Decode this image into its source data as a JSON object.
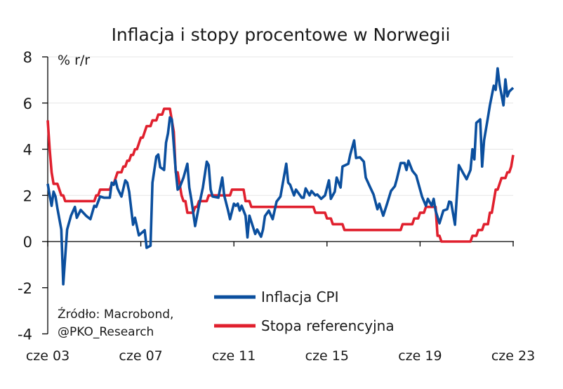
{
  "chart_data": {
    "type": "line",
    "title": "Inflacja i stopy procentowe w Norwegii",
    "ylabel": "% r/r",
    "ylim": [
      -4,
      8
    ],
    "yticks": [
      "8",
      "6",
      "4",
      "2",
      "0",
      "-2",
      "-4"
    ],
    "xlim": [
      "2003-06",
      "2023-06"
    ],
    "xticks": [
      {
        "date": "2003-06",
        "label": "cze 03"
      },
      {
        "date": "2007-06",
        "label": "cze 07"
      },
      {
        "date": "2011-06",
        "label": "cze 11"
      },
      {
        "date": "2015-06",
        "label": "cze 15"
      },
      {
        "date": "2019-06",
        "label": "cze 19"
      },
      {
        "date": "2023-06",
        "label": "cze 23"
      }
    ],
    "grid": true,
    "legend_position": "bottom-center",
    "source": [
      "Źródło: Macrobond,",
      "@PKO_Research"
    ],
    "series": [
      {
        "name": "Inflacja CPI",
        "color": "#0b4f9e",
        "points": [
          [
            "2003-06",
            2.5
          ],
          [
            "2003-07",
            2.0
          ],
          [
            "2003-08",
            1.55
          ],
          [
            "2003-09",
            2.16
          ],
          [
            "2003-10",
            1.95
          ],
          [
            "2003-11",
            1.43
          ],
          [
            "2004-01",
            0.52
          ],
          [
            "2004-02",
            -1.85
          ],
          [
            "2004-04",
            0.52
          ],
          [
            "2004-06",
            1.12
          ],
          [
            "2004-08",
            1.5
          ],
          [
            "2004-09",
            1.03
          ],
          [
            "2004-11",
            1.37
          ],
          [
            "2005-02",
            1.1
          ],
          [
            "2005-04",
            0.97
          ],
          [
            "2005-06",
            1.55
          ],
          [
            "2005-07",
            1.5
          ],
          [
            "2005-09",
            1.95
          ],
          [
            "2005-11",
            1.9
          ],
          [
            "2006-02",
            1.9
          ],
          [
            "2006-03",
            2.55
          ],
          [
            "2006-04",
            2.46
          ],
          [
            "2006-05",
            2.65
          ],
          [
            "2006-06",
            2.3
          ],
          [
            "2006-08",
            1.95
          ],
          [
            "2006-10",
            2.65
          ],
          [
            "2006-11",
            2.55
          ],
          [
            "2006-12",
            2.16
          ],
          [
            "2007-02",
            0.73
          ],
          [
            "2007-03",
            1.03
          ],
          [
            "2007-05",
            0.27
          ],
          [
            "2007-08",
            0.49
          ],
          [
            "2007-09",
            -0.27
          ],
          [
            "2007-11",
            -0.18
          ],
          [
            "2007-12",
            2.55
          ],
          [
            "2008-02",
            3.68
          ],
          [
            "2008-03",
            3.77
          ],
          [
            "2008-04",
            3.22
          ],
          [
            "2008-06",
            3.1
          ],
          [
            "2008-07",
            4.28
          ],
          [
            "2008-08",
            4.68
          ],
          [
            "2008-09",
            5.38
          ],
          [
            "2008-10",
            5.29
          ],
          [
            "2008-12",
            3.07
          ],
          [
            "2009-01",
            2.25
          ],
          [
            "2009-02",
            2.34
          ],
          [
            "2009-04",
            2.77
          ],
          [
            "2009-06",
            3.37
          ],
          [
            "2009-07",
            2.34
          ],
          [
            "2009-08",
            1.85
          ],
          [
            "2009-10",
            0.67
          ],
          [
            "2009-12",
            1.55
          ],
          [
            "2010-02",
            2.34
          ],
          [
            "2010-04",
            3.46
          ],
          [
            "2010-05",
            3.31
          ],
          [
            "2010-06",
            2.25
          ],
          [
            "2010-07",
            1.95
          ],
          [
            "2010-10",
            1.9
          ],
          [
            "2010-12",
            2.77
          ],
          [
            "2011-01",
            2.0
          ],
          [
            "2011-03",
            1.34
          ],
          [
            "2011-04",
            0.97
          ],
          [
            "2011-06",
            1.64
          ],
          [
            "2011-07",
            1.55
          ],
          [
            "2011-08",
            1.64
          ],
          [
            "2011-09",
            1.34
          ],
          [
            "2011-10",
            1.55
          ],
          [
            "2011-12",
            1.12
          ],
          [
            "2012-01",
            0.18
          ],
          [
            "2012-02",
            1.12
          ],
          [
            "2012-05",
            0.33
          ],
          [
            "2012-06",
            0.52
          ],
          [
            "2012-08",
            0.21
          ],
          [
            "2012-09",
            0.52
          ],
          [
            "2012-10",
            1.1
          ],
          [
            "2012-12",
            1.34
          ],
          [
            "2013-02",
            0.97
          ],
          [
            "2013-04",
            1.73
          ],
          [
            "2013-06",
            1.95
          ],
          [
            "2013-09",
            3.37
          ],
          [
            "2013-10",
            2.55
          ],
          [
            "2013-11",
            2.46
          ],
          [
            "2014-01",
            2.0
          ],
          [
            "2014-02",
            2.25
          ],
          [
            "2014-05",
            1.9
          ],
          [
            "2014-06",
            1.9
          ],
          [
            "2014-07",
            2.3
          ],
          [
            "2014-09",
            2.0
          ],
          [
            "2014-10",
            2.19
          ],
          [
            "2014-12",
            2.0
          ],
          [
            "2015-01",
            2.04
          ],
          [
            "2015-03",
            1.85
          ],
          [
            "2015-05",
            2.0
          ],
          [
            "2015-07",
            2.65
          ],
          [
            "2015-08",
            1.85
          ],
          [
            "2015-10",
            2.16
          ],
          [
            "2015-11",
            2.77
          ],
          [
            "2016-01",
            2.34
          ],
          [
            "2016-02",
            3.25
          ],
          [
            "2016-05",
            3.37
          ],
          [
            "2016-06",
            3.77
          ],
          [
            "2016-08",
            4.38
          ],
          [
            "2016-09",
            3.62
          ],
          [
            "2016-11",
            3.65
          ],
          [
            "2017-01",
            3.46
          ],
          [
            "2017-02",
            2.77
          ],
          [
            "2017-04",
            2.4
          ],
          [
            "2017-06",
            2.04
          ],
          [
            "2017-08",
            1.4
          ],
          [
            "2017-09",
            1.64
          ],
          [
            "2017-11",
            1.12
          ],
          [
            "2018-01",
            1.64
          ],
          [
            "2018-03",
            2.19
          ],
          [
            "2018-05",
            2.4
          ],
          [
            "2018-06",
            2.7
          ],
          [
            "2018-08",
            3.4
          ],
          [
            "2018-10",
            3.4
          ],
          [
            "2018-11",
            3.1
          ],
          [
            "2018-12",
            3.5
          ],
          [
            "2019-02",
            3.07
          ],
          [
            "2019-04",
            2.86
          ],
          [
            "2019-07",
            1.95
          ],
          [
            "2019-09",
            1.55
          ],
          [
            "2019-10",
            1.85
          ],
          [
            "2019-12",
            1.55
          ],
          [
            "2020-01",
            1.85
          ],
          [
            "2020-02",
            1.34
          ],
          [
            "2020-04",
            0.79
          ],
          [
            "2020-06",
            1.34
          ],
          [
            "2020-08",
            1.4
          ],
          [
            "2020-09",
            1.73
          ],
          [
            "2020-10",
            1.7
          ],
          [
            "2020-12",
            0.73
          ],
          [
            "2021-02",
            3.31
          ],
          [
            "2021-04",
            3.0
          ],
          [
            "2021-06",
            2.7
          ],
          [
            "2021-08",
            3.1
          ],
          [
            "2021-09",
            4.0
          ],
          [
            "2021-10",
            3.56
          ],
          [
            "2021-11",
            5.14
          ],
          [
            "2022-01",
            5.29
          ],
          [
            "2022-02",
            3.25
          ],
          [
            "2022-03",
            4.38
          ],
          [
            "2022-05",
            5.38
          ],
          [
            "2022-06",
            5.9
          ],
          [
            "2022-08",
            6.75
          ],
          [
            "2022-09",
            6.57
          ],
          [
            "2022-10",
            7.5
          ],
          [
            "2022-11",
            6.8
          ],
          [
            "2023-01",
            5.9
          ],
          [
            "2023-02",
            7.02
          ],
          [
            "2023-03",
            6.29
          ],
          [
            "2023-04",
            6.5
          ],
          [
            "2023-06",
            6.66
          ]
        ]
      },
      {
        "name": "Stopa referencyjna",
        "color": "#e0202e",
        "steps": [
          [
            "2003-06",
            5.25
          ],
          [
            "2003-07",
            4.0
          ],
          [
            "2003-08",
            3.0
          ],
          [
            "2003-09",
            2.5
          ],
          [
            "2003-12",
            2.25
          ],
          [
            "2004-01",
            2.0
          ],
          [
            "2004-03",
            1.75
          ],
          [
            "2005-07",
            2.0
          ],
          [
            "2005-09",
            2.25
          ],
          [
            "2006-03",
            2.5
          ],
          [
            "2006-05",
            2.75
          ],
          [
            "2006-06",
            3.0
          ],
          [
            "2006-09",
            3.25
          ],
          [
            "2006-11",
            3.5
          ],
          [
            "2007-01",
            3.75
          ],
          [
            "2007-03",
            4.0
          ],
          [
            "2007-05",
            4.25
          ],
          [
            "2007-06",
            4.5
          ],
          [
            "2007-08",
            4.75
          ],
          [
            "2007-09",
            5.0
          ],
          [
            "2007-12",
            5.25
          ],
          [
            "2008-03",
            5.5
          ],
          [
            "2008-06",
            5.75
          ],
          [
            "2008-10",
            5.25
          ],
          [
            "2008-11",
            4.75
          ],
          [
            "2008-12",
            3.0
          ],
          [
            "2009-02",
            2.5
          ],
          [
            "2009-03",
            2.0
          ],
          [
            "2009-04",
            1.75
          ],
          [
            "2009-06",
            1.25
          ],
          [
            "2009-10",
            1.5
          ],
          [
            "2009-12",
            1.75
          ],
          [
            "2010-05",
            2.0
          ],
          [
            "2011-05",
            2.25
          ],
          [
            "2011-12",
            1.75
          ],
          [
            "2012-03",
            1.5
          ],
          [
            "2014-12",
            1.25
          ],
          [
            "2015-06",
            1.0
          ],
          [
            "2015-09",
            0.75
          ],
          [
            "2016-03",
            0.5
          ],
          [
            "2018-09",
            0.75
          ],
          [
            "2019-03",
            1.0
          ],
          [
            "2019-06",
            1.25
          ],
          [
            "2019-09",
            1.5
          ],
          [
            "2020-03",
            0.25
          ],
          [
            "2020-05",
            0.0
          ],
          [
            "2021-09",
            0.25
          ],
          [
            "2021-12",
            0.5
          ],
          [
            "2022-03",
            0.75
          ],
          [
            "2022-06",
            1.25
          ],
          [
            "2022-08",
            1.75
          ],
          [
            "2022-09",
            2.25
          ],
          [
            "2022-11",
            2.5
          ],
          [
            "2022-12",
            2.75
          ],
          [
            "2023-03",
            3.0
          ],
          [
            "2023-05",
            3.25
          ],
          [
            "2023-06",
            3.75
          ]
        ]
      }
    ]
  }
}
